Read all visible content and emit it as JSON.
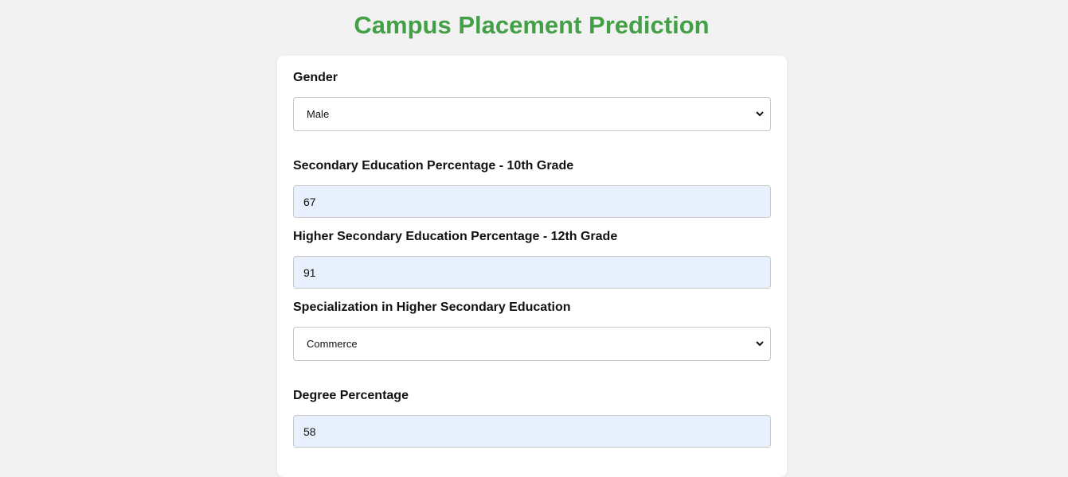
{
  "title": "Campus Placement Prediction",
  "form": {
    "gender": {
      "label": "Gender",
      "value": "Male"
    },
    "ssc": {
      "label": "Secondary Education Percentage - 10th Grade",
      "value": "67"
    },
    "hsc": {
      "label": "Higher Secondary Education Percentage - 12th Grade",
      "value": "91"
    },
    "hsc_spec": {
      "label": "Specialization in Higher Secondary Education",
      "value": "Commerce"
    },
    "degree": {
      "label": "Degree Percentage",
      "value": "58"
    }
  },
  "colors": {
    "title": "#43a047",
    "background": "#f2f2f2",
    "input_fill": "#e8f0fe"
  },
  "icons": {
    "select_arrow": "chevron-down-icon"
  }
}
